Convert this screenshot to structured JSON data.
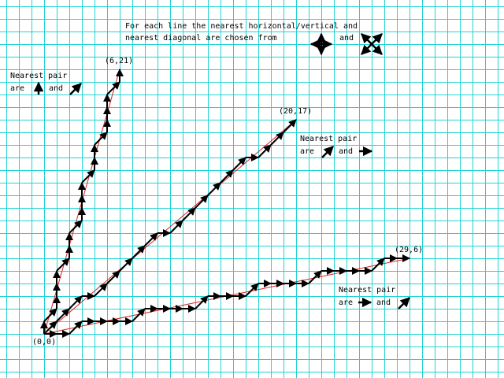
{
  "colors": {
    "grid": "#22d3d3",
    "ideal_line": "#e02020",
    "step": "#000000",
    "background": "#ffffff"
  },
  "intro": {
    "line1": "For each line the nearest horizontal/vertical and",
    "line2": "nearest diagonal are chosen from",
    "and": "and",
    "icons": [
      "four-way-arrows-icon",
      "four-diagonal-arrows-icon"
    ]
  },
  "origin_label": "(0,0)",
  "chart_data": {
    "type": "line",
    "x_range": [
      0,
      29
    ],
    "y_range": [
      0,
      21
    ],
    "grid": true,
    "lines": [
      {
        "end": [
          6,
          21
        ],
        "end_label": "(6,21)",
        "pair_text_1": "Nearest pair",
        "pair_text_2": "are",
        "pair_text_and": "and",
        "pair_icons": [
          "arrow-up-icon",
          "arrow-up-right-icon"
        ]
      },
      {
        "end": [
          20,
          17
        ],
        "end_label": "(20,17)",
        "pair_text_1": "Nearest pair",
        "pair_text_2": "are",
        "pair_text_and": "and",
        "pair_icons": [
          "arrow-up-right-icon",
          "arrow-right-icon"
        ]
      },
      {
        "end": [
          29,
          6
        ],
        "end_label": "(29,6)",
        "pair_text_1": "Nearest pair",
        "pair_text_2": "are",
        "pair_text_and": "and",
        "pair_icons": [
          "arrow-right-icon",
          "arrow-up-right-icon"
        ]
      }
    ]
  }
}
